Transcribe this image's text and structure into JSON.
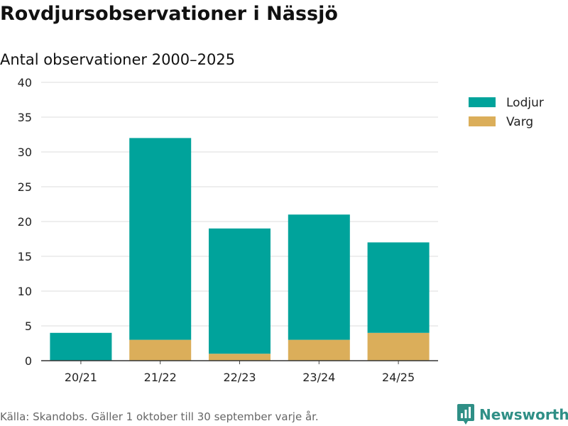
{
  "title": "Rovdjursobservationer i Nässjö",
  "footer": {
    "source": "Källa: Skandobs. Gäller 1 oktober till 30 september varje år.",
    "brand": "Newsworthy"
  },
  "colors": {
    "lodjur": "#00a39b",
    "varg": "#dbae5a",
    "brand": "#2f8f86"
  },
  "chart_data": {
    "type": "bar",
    "stacked": true,
    "title": "Rovdjursobservationer i Nässjö",
    "subtitle": "Antal observationer 2000–2025",
    "xlabel": "",
    "ylabel": "",
    "categories": [
      "20/21",
      "21/22",
      "22/23",
      "23/24",
      "24/25"
    ],
    "series": [
      {
        "name": "Varg",
        "values": [
          0,
          3,
          1,
          3,
          4
        ]
      },
      {
        "name": "Lodjur",
        "values": [
          4,
          29,
          18,
          18,
          13
        ]
      }
    ],
    "legend": [
      "Lodjur",
      "Varg"
    ],
    "ylim": [
      0,
      40
    ],
    "yticks": [
      0,
      5,
      10,
      15,
      20,
      25,
      30,
      35,
      40
    ],
    "grid": true,
    "legend_position": "top-right"
  }
}
